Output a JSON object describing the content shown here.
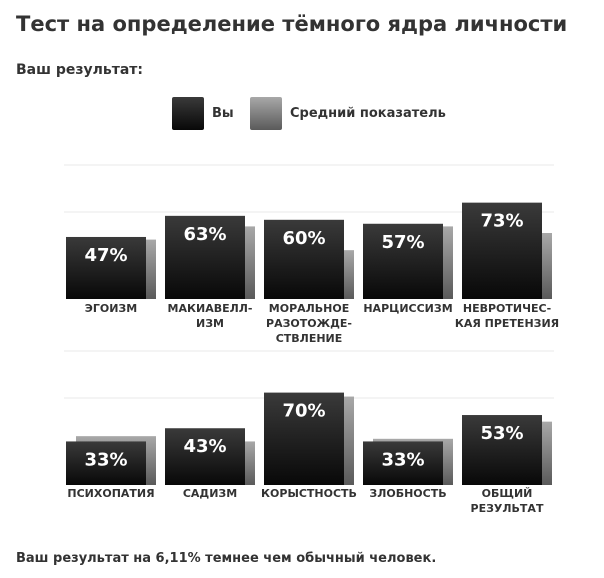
{
  "page": {
    "title": "Тест на определение тёмного ядра личности",
    "result_label": "Ваш результат:",
    "footer": "Ваш результат на 6,11% темнее чем обычный человек."
  },
  "legend": {
    "you": "Вы",
    "average": "Средний показатель"
  },
  "colors": {
    "you_top": "#3a3a3a",
    "you_bottom": "#080808",
    "avg_top": "#a8a8a8",
    "avg_bottom": "#5a5a5a",
    "grid": "#e8e8e8",
    "bar_label": "#ffffff",
    "category_label": "#333333"
  },
  "chart_data": [
    {
      "type": "bar",
      "categories": [
        [
          "ЭГОИЗМ"
        ],
        [
          "МАКИАВЕЛЛ-",
          "ИЗМ"
        ],
        [
          "МОРАЛЬНОЕ",
          "РАЗОТОЖДЕ-",
          "СТВЛЕНИЕ"
        ],
        [
          "НАРЦИССИЗМ"
        ],
        [
          "НЕВРОТИЧЕС-",
          "КАЯ ПРЕТЕНЗИЯ"
        ]
      ],
      "value_labels": [
        "47%",
        "63%",
        "60%",
        "57%",
        "73%"
      ],
      "series": [
        {
          "name": "Вы",
          "values": [
            47,
            63,
            60,
            57,
            73
          ]
        },
        {
          "name": "Средний показатель",
          "values": [
            45,
            55,
            37,
            55,
            50
          ]
        }
      ],
      "ylim": [
        0,
        100
      ],
      "grid": true,
      "legend_position": "top-center"
    },
    {
      "type": "bar",
      "categories": [
        [
          "ПСИХОПАТИЯ"
        ],
        [
          "САДИЗМ"
        ],
        [
          "КОРЫСТНОСТЬ"
        ],
        [
          "ЗЛОБНОСТЬ"
        ],
        [
          "ОБЩИЙ",
          "РЕЗУЛЬТАТ"
        ]
      ],
      "value_labels": [
        "33%",
        "43%",
        "70%",
        "33%",
        "53%"
      ],
      "series": [
        {
          "name": "Вы",
          "values": [
            33,
            43,
            70,
            33,
            53
          ]
        },
        {
          "name": "Средний показатель",
          "values": [
            37,
            33,
            67,
            35,
            48
          ]
        }
      ],
      "ylim": [
        0,
        100
      ],
      "grid": true,
      "legend_position": "top-center"
    }
  ]
}
